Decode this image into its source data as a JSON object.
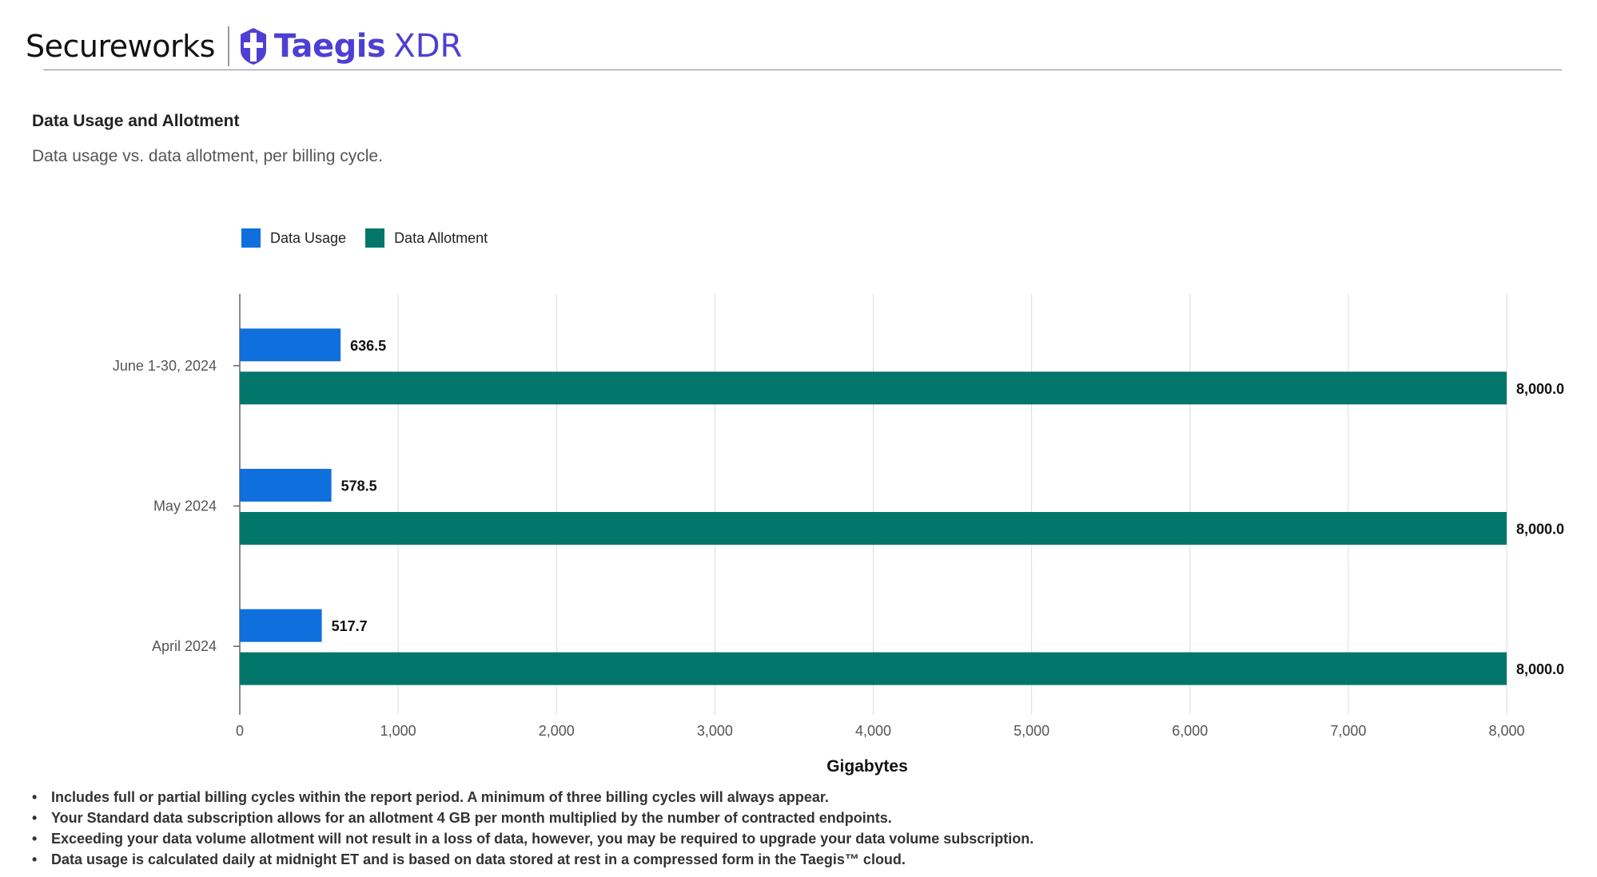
{
  "header": {
    "brand_secureworks": "Secureworks",
    "brand_taegis": "Taegis",
    "brand_xdr": "XDR",
    "logo_icon": "taegis-shield-icon",
    "brand_color": "#4e3fd3"
  },
  "report": {
    "title": "Data Usage and Allotment",
    "subtitle": "Data usage vs. data allotment, per billing cycle."
  },
  "chart_data": {
    "type": "bar",
    "orientation": "horizontal",
    "categories": [
      "June 1-30, 2024",
      "May 2024",
      "April 2024"
    ],
    "series": [
      {
        "name": "Data Usage",
        "color": "#0f6fdc",
        "values": [
          636.5,
          578.5,
          517.7
        ],
        "labels": [
          "636.5",
          "578.5",
          "517.7"
        ]
      },
      {
        "name": "Data Allotment",
        "color": "#02766a",
        "values": [
          8000.0,
          8000.0,
          8000.0
        ],
        "labels": [
          "8,000.0",
          "8,000.0",
          "8,000.0"
        ]
      }
    ],
    "xlabel": "Gigabytes",
    "ylabel": "",
    "xlim": [
      0,
      8000
    ],
    "xticks": [
      0,
      1000,
      2000,
      3000,
      4000,
      5000,
      6000,
      7000,
      8000
    ],
    "xtick_labels": [
      "0",
      "1,000",
      "2,000",
      "3,000",
      "4,000",
      "5,000",
      "6,000",
      "7,000",
      "8,000"
    ],
    "grid": "vertical",
    "legend_position": "top-left"
  },
  "notes": [
    "Includes full or partial billing cycles within the report period. A minimum of three billing cycles will always appear.",
    "Your Standard data subscription allows for an allotment 4 GB per month multiplied by the number of contracted endpoints.",
    "Exceeding your data volume allotment will not result in a loss of data, however, you may be required to upgrade your data volume subscription.",
    "Data usage is calculated daily at midnight ET and is based on data stored at rest in a compressed form in the Taegis™ cloud."
  ],
  "note_bullet": "•"
}
